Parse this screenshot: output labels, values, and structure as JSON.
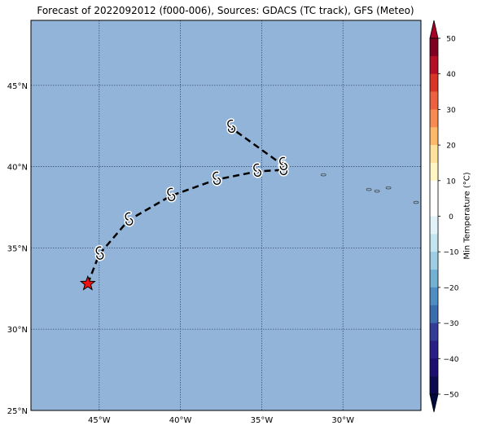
{
  "title": "Forecast of 2022092012 (f000-006), Sources: GDACS (TC track), GFS (Meteo)",
  "colors": {
    "ocean": "#92b4d8",
    "grid": "#2b3f5f",
    "track": "#000000",
    "current_position": "#ee1111"
  },
  "chart_data": {
    "type": "map",
    "title": "Forecast of 2022092012 (f000-006), Sources: GDACS (TC track), GFS (Meteo)",
    "xlim": [
      -49.2,
      -25.2
    ],
    "ylim": [
      25,
      49
    ],
    "x_ticks": [
      {
        "value": -45,
        "label": "45°W"
      },
      {
        "value": -40,
        "label": "40°W"
      },
      {
        "value": -35,
        "label": "35°W"
      },
      {
        "value": -30,
        "label": "30°W"
      }
    ],
    "y_ticks": [
      {
        "value": 25,
        "label": "25°N"
      },
      {
        "value": 30,
        "label": "30°N"
      },
      {
        "value": 35,
        "label": "35°N"
      },
      {
        "value": 40,
        "label": "40°N"
      },
      {
        "value": 45,
        "label": "45°N"
      }
    ],
    "grid": true,
    "track": [
      {
        "lon": -45.7,
        "lat": 32.8,
        "marker": "star"
      },
      {
        "lon": -45.0,
        "lat": 34.6,
        "marker": "cyclone"
      },
      {
        "lon": -43.2,
        "lat": 36.7,
        "marker": "cyclone"
      },
      {
        "lon": -40.6,
        "lat": 38.2,
        "marker": "cyclone"
      },
      {
        "lon": -37.8,
        "lat": 39.2,
        "marker": "cyclone"
      },
      {
        "lon": -35.3,
        "lat": 39.7,
        "marker": "cyclone"
      },
      {
        "lon": -33.7,
        "lat": 39.8,
        "marker": "cyclone"
      },
      {
        "lon": -33.7,
        "lat": 40.1,
        "marker": "cyclone"
      },
      {
        "lon": -36.9,
        "lat": 42.4,
        "marker": "cyclone"
      }
    ],
    "islands": [
      {
        "lon": -31.2,
        "lat": 39.5
      },
      {
        "lon": -28.4,
        "lat": 38.6
      },
      {
        "lon": -27.9,
        "lat": 38.5
      },
      {
        "lon": -27.2,
        "lat": 38.7
      },
      {
        "lon": -25.5,
        "lat": 37.8
      }
    ],
    "colorbar": {
      "label": "Min Temperature (°C)",
      "ticks": [
        50,
        40,
        30,
        20,
        10,
        0,
        -10,
        -20,
        -30,
        -40,
        -50
      ],
      "bounds": [
        50,
        45,
        40,
        35,
        30,
        25,
        20,
        15,
        10,
        5,
        0,
        -5,
        -10,
        -15,
        -20,
        -25,
        -30,
        -35,
        -40,
        -45,
        -50
      ],
      "segment_colors": [
        "#7f0022",
        "#b40f26",
        "#d83527",
        "#ee6140",
        "#f88b51",
        "#fdb869",
        "#fee29b",
        "#fff6c4",
        "#ffffff",
        "#ffffff",
        "#e1f3f8",
        "#c2e5f0",
        "#9dcee3",
        "#72b0d4",
        "#4f8ec2",
        "#3b6eaf",
        "#333d97",
        "#2a1f86",
        "#1c0d70",
        "#0c0a4e"
      ],
      "extend_top": "#a50026",
      "extend_bottom": "#000a3f"
    }
  }
}
